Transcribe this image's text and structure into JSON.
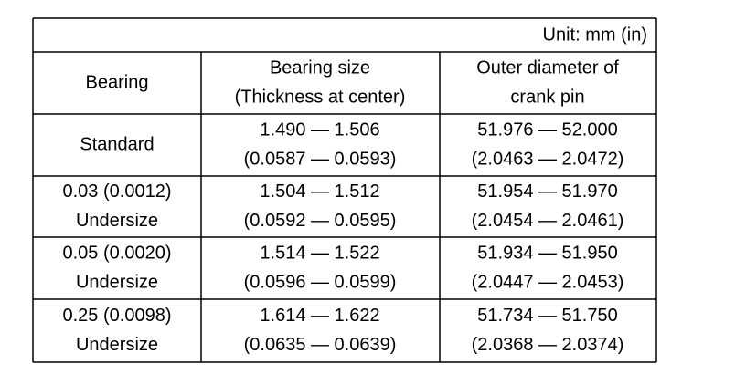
{
  "table": {
    "unit": "Unit: mm (in)",
    "header": [
      [
        "Bearing"
      ],
      [
        "Bearing size",
        "(Thickness at center)"
      ],
      [
        "Outer diameter of",
        "crank pin"
      ]
    ],
    "rows": [
      [
        [
          "Standard"
        ],
        [
          "1.490 — 1.506",
          "(0.0587 — 0.0593)"
        ],
        [
          "51.976 — 52.000",
          "(2.0463 — 2.0472)"
        ]
      ],
      [
        [
          "0.03 (0.0012)",
          "Undersize"
        ],
        [
          "1.504 — 1.512",
          "(0.0592 — 0.0595)"
        ],
        [
          "51.954 — 51.970",
          "(2.0454 — 2.0461)"
        ]
      ],
      [
        [
          "0.05 (0.0020)",
          "Undersize"
        ],
        [
          "1.514 — 1.522",
          "(0.0596 — 0.0599)"
        ],
        [
          "51.934 — 51.950",
          "(2.0447 — 2.0453)"
        ]
      ],
      [
        [
          "0.25 (0.0098)",
          "Undersize"
        ],
        [
          "1.614 — 1.622",
          "(0.0635 — 0.0639)"
        ],
        [
          "51.734 — 51.750",
          "(2.0368 — 2.0374)"
        ]
      ]
    ]
  }
}
